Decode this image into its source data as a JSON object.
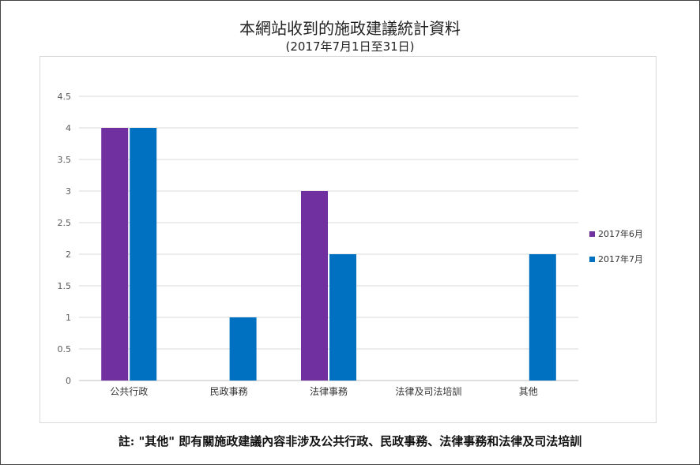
{
  "chart_data": {
    "type": "bar",
    "title": "本網站收到的施政建議統計資料",
    "subtitle": "(2017年7月1日至31日)",
    "categories": [
      "公共行政",
      "民政事務",
      "法律事務",
      "法律及司法培訓",
      "其他"
    ],
    "series": [
      {
        "name": "2017年6月",
        "values": [
          4,
          0,
          3,
          0,
          0
        ],
        "color": "#7030a0"
      },
      {
        "name": "2017年7月",
        "values": [
          4,
          1,
          2,
          0,
          2
        ],
        "color": "#0070c0"
      }
    ],
    "yticks": [
      "0",
      "0.5",
      "1",
      "1.5",
      "2",
      "2.5",
      "3",
      "3.5",
      "4",
      "4.5"
    ],
    "ylim": [
      0,
      4.5
    ],
    "xlabel": "",
    "ylabel": "",
    "grid": true,
    "legend_position": "right"
  },
  "footnote": "註: \"其他\" 即有關施政建議內容非涉及公共行政、民政事務、法律事務和法律及司法培訓"
}
